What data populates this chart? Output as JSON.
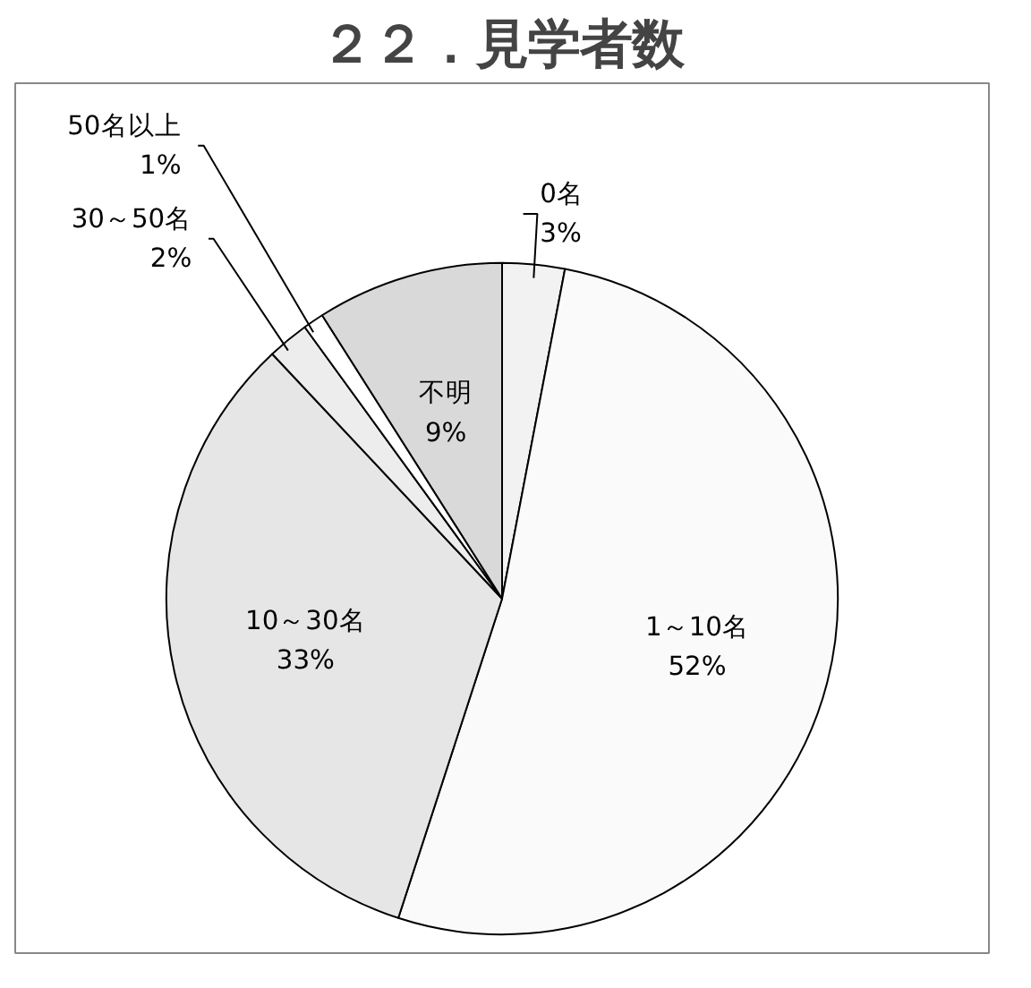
{
  "chart_data": {
    "type": "pie",
    "title": "２２．見学者数",
    "categories": [
      "0名",
      "1～10名",
      "10～30名",
      "30～50名",
      "50名以上",
      "不明"
    ],
    "values": [
      3,
      52,
      33,
      2,
      1,
      9
    ],
    "value_labels": [
      "3%",
      "52%",
      "33%",
      "2%",
      "1%",
      "9%"
    ],
    "colors": [
      "#f2f2f2",
      "#fafafa",
      "#e6e6e6",
      "#ededed",
      "#ffffff",
      "#d9d9d9"
    ]
  }
}
